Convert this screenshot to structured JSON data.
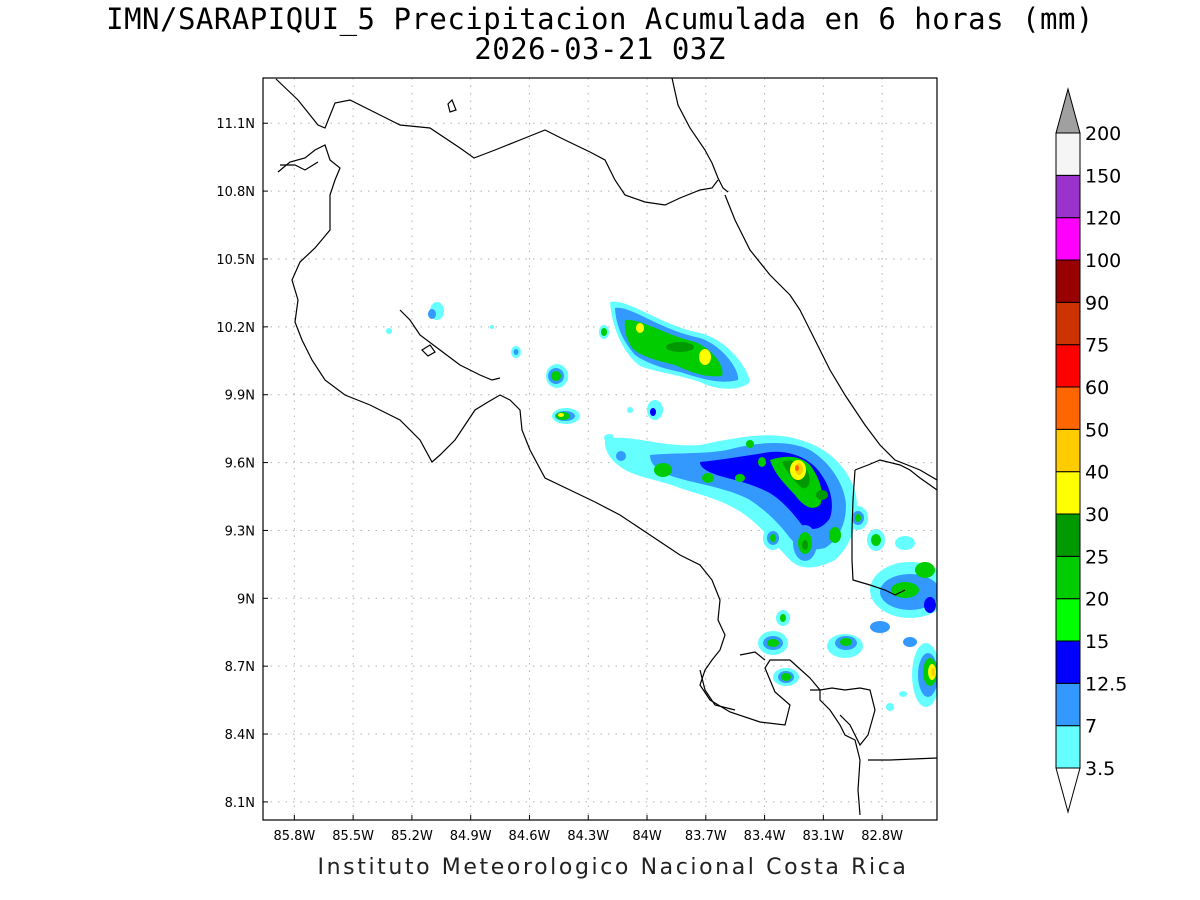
{
  "title": {
    "line1": "IMN/SARAPIQUI_5 Precipitacion Acumulada en 6 horas (mm)",
    "line2": "2026-03-21 03Z"
  },
  "footer": "Instituto Meteorologico Nacional Costa Rica",
  "map": {
    "lon_ticks": [
      "85.8W",
      "85.5W",
      "85.2W",
      "84.9W",
      "84.6W",
      "84.3W",
      "84W",
      "83.7W",
      "83.4W",
      "83.1W",
      "82.8W"
    ],
    "lat_ticks": [
      "11.1N",
      "10.8N",
      "10.5N",
      "10.2N",
      "9.9N",
      "9.6N",
      "9.3N",
      "9N",
      "8.7N",
      "8.4N",
      "8.1N"
    ],
    "grid": true,
    "extent": {
      "lon_min": -85.96,
      "lon_max": -82.52,
      "lat_min": 8.02,
      "lat_max": 11.3
    }
  },
  "colorbar": {
    "labels": [
      "3.5",
      "7",
      "12.5",
      "15",
      "20",
      "25",
      "30",
      "40",
      "50",
      "60",
      "75",
      "90",
      "100",
      "120",
      "150",
      "200"
    ],
    "colors": [
      "#66ffff",
      "#3399ff",
      "#0000ff",
      "#00ff00",
      "#00cc00",
      "#009900",
      "#ffff00",
      "#ffcc00",
      "#ff6600",
      "#ff0000",
      "#cc3300",
      "#990000",
      "#ff00ff",
      "#9933cc",
      "#f5f5f5"
    ],
    "over_color": "#a0a0a0",
    "under_color": "#ffffff"
  }
}
